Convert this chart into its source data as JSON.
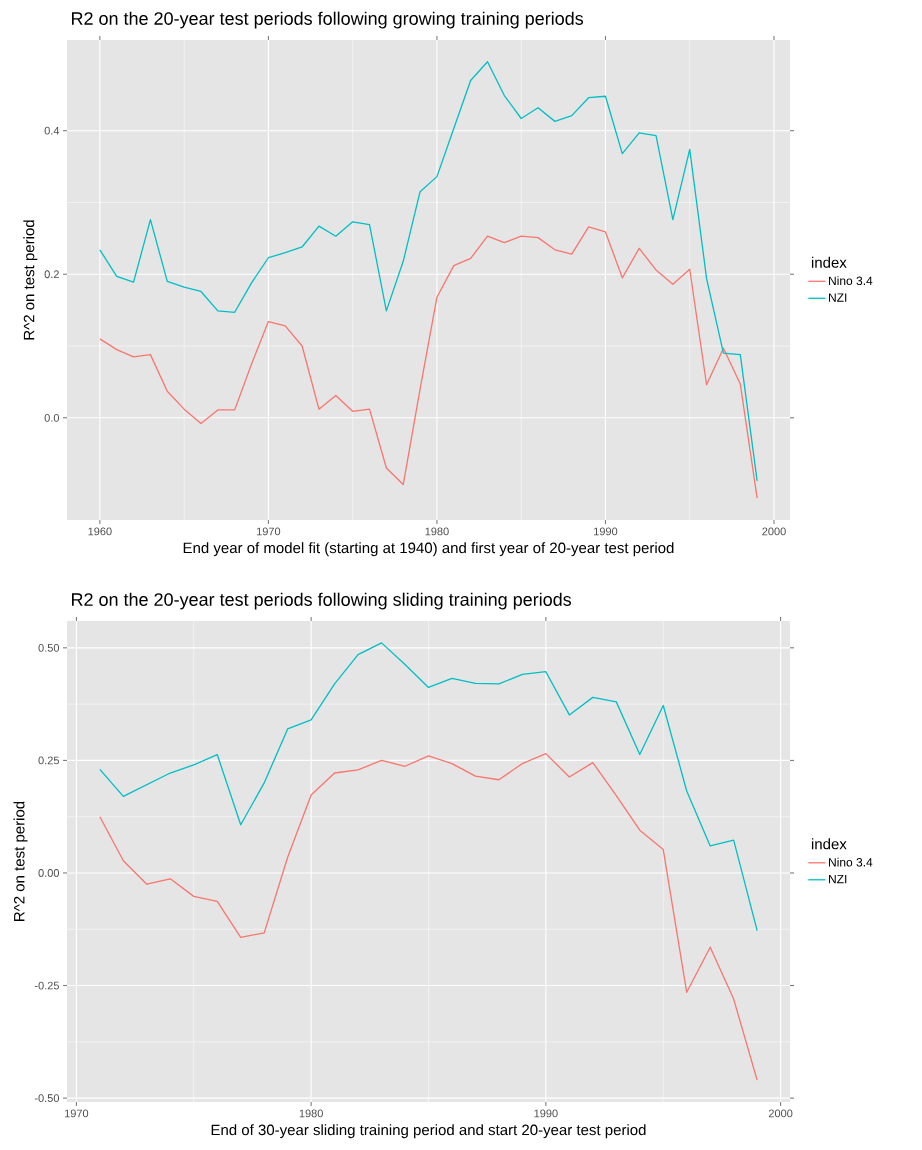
{
  "chart_data": [
    {
      "type": "line",
      "title": "R2 on the 20-year test periods following growing training periods",
      "xlabel": "End year of model fit (starting at 1940) and first year of 20-year test period",
      "ylabel": "R^2 on test period",
      "legend_title": "index",
      "legend": "right",
      "grid": true,
      "x": [
        1960,
        1961,
        1962,
        1963,
        1964,
        1965,
        1966,
        1967,
        1968,
        1969,
        1970,
        1971,
        1972,
        1973,
        1974,
        1975,
        1976,
        1977,
        1978,
        1979,
        1980,
        1981,
        1982,
        1983,
        1984,
        1985,
        1986,
        1987,
        1988,
        1989,
        1990,
        1991,
        1992,
        1993,
        1994,
        1995,
        1996,
        1997,
        1998,
        1999
      ],
      "xlim": [
        1958.05,
        2000.95
      ],
      "xticks": [
        1960,
        1970,
        1980,
        1990,
        2000
      ],
      "ylim": [
        -0.1424,
        0.5264
      ],
      "yticks": [
        {
          "value": 0,
          "label": "0.0"
        },
        {
          "value": 0.2,
          "label": "0.2"
        },
        {
          "value": 0.4,
          "label": "0.4"
        }
      ],
      "series": [
        {
          "name": "Nino 3.4",
          "color": "#f8766d",
          "values": [
            0.11,
            0.095,
            0.085,
            0.088,
            0.037,
            0.012,
            -0.008,
            0.011,
            0.011,
            0.075,
            0.134,
            0.128,
            0.1,
            0.012,
            0.031,
            0.009,
            0.012,
            -0.07,
            -0.093,
            0.04,
            0.168,
            0.212,
            0.222,
            0.253,
            0.244,
            0.253,
            0.251,
            0.234,
            0.228,
            0.266,
            0.259,
            0.195,
            0.236,
            0.206,
            0.186,
            0.207,
            0.046,
            0.097,
            0.047,
            -0.112
          ]
        },
        {
          "name": "NZI",
          "color": "#00bfc4",
          "values": [
            0.234,
            0.197,
            0.189,
            0.276,
            0.19,
            0.182,
            0.176,
            0.149,
            0.147,
            0.188,
            0.223,
            0.23,
            0.238,
            0.267,
            0.253,
            0.273,
            0.269,
            0.149,
            0.218,
            0.315,
            0.336,
            0.403,
            0.47,
            0.496,
            0.449,
            0.417,
            0.432,
            0.413,
            0.421,
            0.446,
            0.448,
            0.368,
            0.397,
            0.393,
            0.276,
            0.374,
            0.194,
            0.09,
            0.088,
            -0.088
          ]
        }
      ]
    },
    {
      "type": "line",
      "title": "R2 on the 20-year test periods following sliding training periods",
      "xlabel": "End of 30-year sliding training period and start 20-year test period",
      "ylabel": "R^2 on test period",
      "legend_title": "index",
      "legend": "right",
      "grid": true,
      "x": [
        1971,
        1972,
        1973,
        1974,
        1975,
        1976,
        1977,
        1978,
        1979,
        1980,
        1981,
        1982,
        1983,
        1984,
        1985,
        1986,
        1987,
        1988,
        1989,
        1990,
        1991,
        1992,
        1993,
        1994,
        1995,
        1996,
        1997,
        1998,
        1999
      ],
      "xlim": [
        1969.6,
        2000.4
      ],
      "xticks": [
        1970,
        1980,
        1990,
        2000
      ],
      "ylim": [
        -0.5086,
        0.5596
      ],
      "yticks": [
        {
          "value": -0.5,
          "label": "-0.50"
        },
        {
          "value": -0.25,
          "label": "-0.25"
        },
        {
          "value": 0,
          "label": "0.00"
        },
        {
          "value": 0.25,
          "label": "0.25"
        },
        {
          "value": 0.5,
          "label": "0.50"
        }
      ],
      "series": [
        {
          "name": "Nino 3.4",
          "color": "#f8766d",
          "values": [
            0.125,
            0.027,
            -0.025,
            -0.013,
            -0.052,
            -0.063,
            -0.143,
            -0.133,
            0.035,
            0.173,
            0.222,
            0.229,
            0.25,
            0.237,
            0.26,
            0.243,
            0.215,
            0.207,
            0.243,
            0.265,
            0.213,
            0.245,
            0.172,
            0.095,
            0.052,
            -0.265,
            -0.165,
            -0.28,
            -0.46
          ]
        },
        {
          "name": "NZI",
          "color": "#00bfc4",
          "values": [
            0.23,
            0.17,
            0.196,
            0.222,
            0.24,
            0.263,
            0.107,
            0.2,
            0.32,
            0.34,
            0.42,
            0.485,
            0.511,
            0.463,
            0.412,
            0.432,
            0.421,
            0.42,
            0.441,
            0.447,
            0.351,
            0.39,
            0.38,
            0.263,
            0.372,
            0.182,
            0.06,
            0.073,
            -0.128
          ]
        }
      ]
    }
  ]
}
